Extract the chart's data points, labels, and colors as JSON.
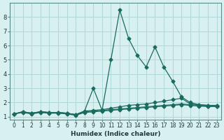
{
  "xlabel": "Humidex (Indice chaleur)",
  "x_values": [
    0,
    1,
    2,
    3,
    4,
    5,
    6,
    7,
    8,
    9,
    10,
    11,
    12,
    13,
    14,
    15,
    16,
    17,
    18,
    19,
    20,
    21,
    22,
    23
  ],
  "line1": [
    1.2,
    1.35,
    1.25,
    1.35,
    1.3,
    1.3,
    1.25,
    1.15,
    1.4,
    3.0,
    1.45,
    5.0,
    8.5,
    6.5,
    5.3,
    4.5,
    5.9,
    4.5,
    3.5,
    2.4,
    2.0,
    1.85,
    1.8,
    1.8
  ],
  "line2": [
    1.2,
    1.35,
    1.25,
    1.35,
    1.3,
    1.3,
    1.25,
    1.15,
    1.4,
    1.45,
    1.5,
    1.6,
    1.7,
    1.8,
    1.85,
    1.9,
    2.0,
    2.1,
    2.2,
    2.3,
    1.9,
    1.85,
    1.8,
    1.8
  ],
  "line3": [
    1.2,
    1.35,
    1.25,
    1.35,
    1.3,
    1.3,
    1.25,
    1.15,
    1.35,
    1.4,
    1.45,
    1.5,
    1.55,
    1.6,
    1.65,
    1.7,
    1.75,
    1.8,
    1.85,
    1.9,
    1.85,
    1.8,
    1.75,
    1.75
  ],
  "line4": [
    1.2,
    1.3,
    1.2,
    1.3,
    1.25,
    1.25,
    1.2,
    1.1,
    1.3,
    1.35,
    1.4,
    1.45,
    1.5,
    1.55,
    1.6,
    1.65,
    1.7,
    1.75,
    1.8,
    1.85,
    1.8,
    1.75,
    1.72,
    1.72
  ],
  "line_color": "#1a6b5e",
  "bg_color": "#d8f0f0",
  "grid_color": "#b0d8d8",
  "ylim": [
    0.8,
    9.0
  ],
  "xlim": [
    -0.5,
    23.5
  ],
  "yticks": [
    1,
    2,
    3,
    4,
    5,
    6,
    7,
    8
  ],
  "xticks": [
    0,
    1,
    2,
    3,
    4,
    5,
    6,
    7,
    8,
    9,
    10,
    11,
    12,
    13,
    14,
    15,
    16,
    17,
    18,
    19,
    20,
    21,
    22,
    23
  ]
}
